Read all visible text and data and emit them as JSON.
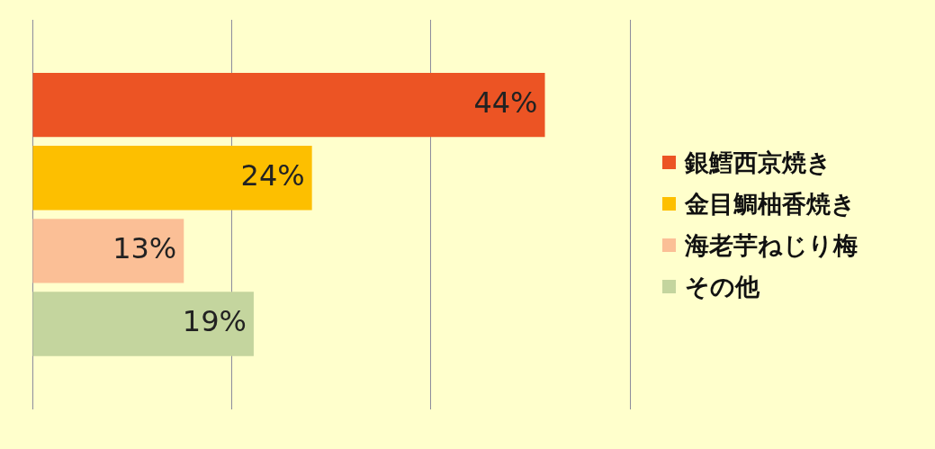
{
  "chart_data": {
    "type": "bar",
    "orientation": "horizontal",
    "categories": [
      null
    ],
    "series": [
      {
        "name": "銀鱈西京焼き",
        "color": "#ec5424",
        "values": [
          44
        ],
        "value_labels": [
          "44%"
        ]
      },
      {
        "name": "金目鯛柚香焼き",
        "color": "#fdbf00",
        "values": [
          24
        ],
        "value_labels": [
          "24%"
        ]
      },
      {
        "name": "海老芋ねじり梅",
        "color": "#fbbf96",
        "values": [
          13
        ],
        "value_labels": [
          "13%"
        ]
      },
      {
        "name": "その他",
        "color": "#c4d59e",
        "values": [
          19
        ],
        "value_labels": [
          "19%"
        ]
      }
    ],
    "xlim": [
      0,
      51.3
    ],
    "xticks": [
      {
        "value": 0,
        "label": null
      },
      {
        "value": 17.1,
        "label": null
      },
      {
        "value": 34.2,
        "label": null
      },
      {
        "value": 51.3,
        "label": null
      }
    ],
    "grid": "x",
    "legend": "right"
  }
}
